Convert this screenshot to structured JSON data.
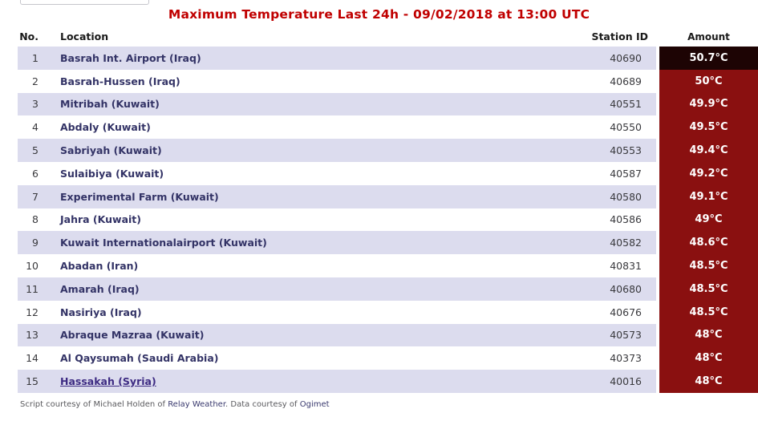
{
  "page": {
    "title": "Maximum Temperature Last 24h - 09/02/2018 at 13:00 UTC"
  },
  "colors": {
    "title_red": "#c00000",
    "row_alt_lavender": "#dcdcee",
    "location_navy": "#333366",
    "visited_link_purple": "#3c2a82",
    "amount_red": "#8a1010",
    "amount_darkest": "#1d0404",
    "amount_text": "#ffffff"
  },
  "table": {
    "headers": {
      "no": "No.",
      "location": "Location",
      "station": "Station ID",
      "amount": "Amount"
    },
    "rows": [
      {
        "no": "1",
        "location": "Basrah Int. Airport (Iraq)",
        "station": "40690",
        "amount": "50.7°C",
        "amount_bg": "#1d0404",
        "link": false
      },
      {
        "no": "2",
        "location": "Basrah-Hussen (Iraq)",
        "station": "40689",
        "amount": "50°C",
        "amount_bg": "#8a1010",
        "link": false
      },
      {
        "no": "3",
        "location": "Mitribah (Kuwait)",
        "station": "40551",
        "amount": "49.9°C",
        "amount_bg": "#8a1010",
        "link": false
      },
      {
        "no": "4",
        "location": "Abdaly (Kuwait)",
        "station": "40550",
        "amount": "49.5°C",
        "amount_bg": "#8a1010",
        "link": false
      },
      {
        "no": "5",
        "location": "Sabriyah (Kuwait)",
        "station": "40553",
        "amount": "49.4°C",
        "amount_bg": "#8a1010",
        "link": false
      },
      {
        "no": "6",
        "location": "Sulaibiya (Kuwait)",
        "station": "40587",
        "amount": "49.2°C",
        "amount_bg": "#8a1010",
        "link": false
      },
      {
        "no": "7",
        "location": "Experimental Farm (Kuwait)",
        "station": "40580",
        "amount": "49.1°C",
        "amount_bg": "#8a1010",
        "link": false
      },
      {
        "no": "8",
        "location": "Jahra (Kuwait)",
        "station": "40586",
        "amount": "49°C",
        "amount_bg": "#8a1010",
        "link": false
      },
      {
        "no": "9",
        "location": "Kuwait Internationalairport (Kuwait)",
        "station": "40582",
        "amount": "48.6°C",
        "amount_bg": "#8a1010",
        "link": false
      },
      {
        "no": "10",
        "location": "Abadan (Iran)",
        "station": "40831",
        "amount": "48.5°C",
        "amount_bg": "#8a1010",
        "link": false
      },
      {
        "no": "11",
        "location": "Amarah (Iraq)",
        "station": "40680",
        "amount": "48.5°C",
        "amount_bg": "#8a1010",
        "link": false
      },
      {
        "no": "12",
        "location": "Nasiriya (Iraq)",
        "station": "40676",
        "amount": "48.5°C",
        "amount_bg": "#8a1010",
        "link": false
      },
      {
        "no": "13",
        "location": "Abraque Mazraa (Kuwait)",
        "station": "40573",
        "amount": "48°C",
        "amount_bg": "#8a1010",
        "link": false
      },
      {
        "no": "14",
        "location": "Al Qaysumah (Saudi Arabia)",
        "station": "40373",
        "amount": "48°C",
        "amount_bg": "#8a1010",
        "link": false
      },
      {
        "no": "15",
        "location": "Hassakah (Syria)",
        "station": "40016",
        "amount": "48°C",
        "amount_bg": "#8a1010",
        "link": true
      }
    ]
  },
  "footer": {
    "prefix": "Script courtesy of  Michael Holden of ",
    "link1": "Relay Weather",
    "middle": ". Data courtesy of ",
    "link2": "Ogimet"
  }
}
